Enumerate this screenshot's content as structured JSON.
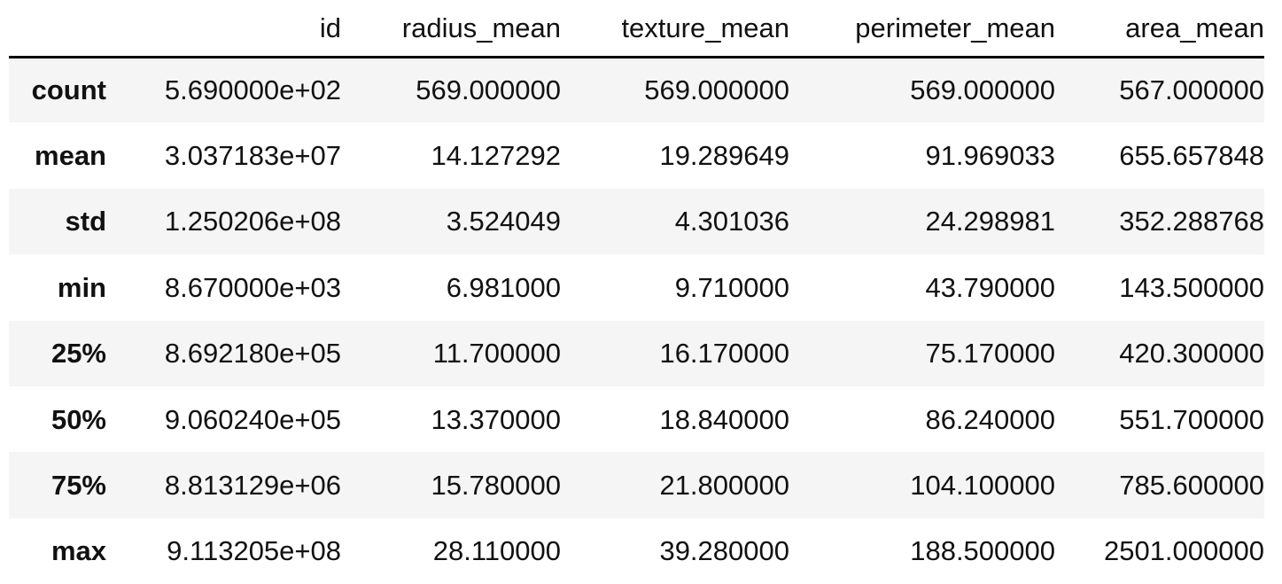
{
  "table": {
    "columns": [
      "",
      "id",
      "radius_mean",
      "texture_mean",
      "perimeter_mean",
      "area_mean"
    ],
    "rows": [
      {
        "label": "count",
        "values": [
          "5.690000e+02",
          "569.000000",
          "569.000000",
          "569.000000",
          "567.000000"
        ]
      },
      {
        "label": "mean",
        "values": [
          "3.037183e+07",
          "14.127292",
          "19.289649",
          "91.969033",
          "655.657848"
        ]
      },
      {
        "label": "std",
        "values": [
          "1.250206e+08",
          "3.524049",
          "4.301036",
          "24.298981",
          "352.288768"
        ]
      },
      {
        "label": "min",
        "values": [
          "8.670000e+03",
          "6.981000",
          "9.710000",
          "43.790000",
          "143.500000"
        ]
      },
      {
        "label": "25%",
        "values": [
          "8.692180e+05",
          "11.700000",
          "16.170000",
          "75.170000",
          "420.300000"
        ]
      },
      {
        "label": "50%",
        "values": [
          "9.060240e+05",
          "13.370000",
          "18.840000",
          "86.240000",
          "551.700000"
        ]
      },
      {
        "label": "75%",
        "values": [
          "8.813129e+06",
          "15.780000",
          "21.800000",
          "104.100000",
          "785.600000"
        ]
      },
      {
        "label": "max",
        "values": [
          "9.113205e+08",
          "28.110000",
          "39.280000",
          "188.500000",
          "2501.000000"
        ]
      }
    ]
  },
  "colors": {
    "stripe": "#f5f5f5",
    "background": "#ffffff",
    "text": "#111111",
    "header_rule": "#000000"
  }
}
